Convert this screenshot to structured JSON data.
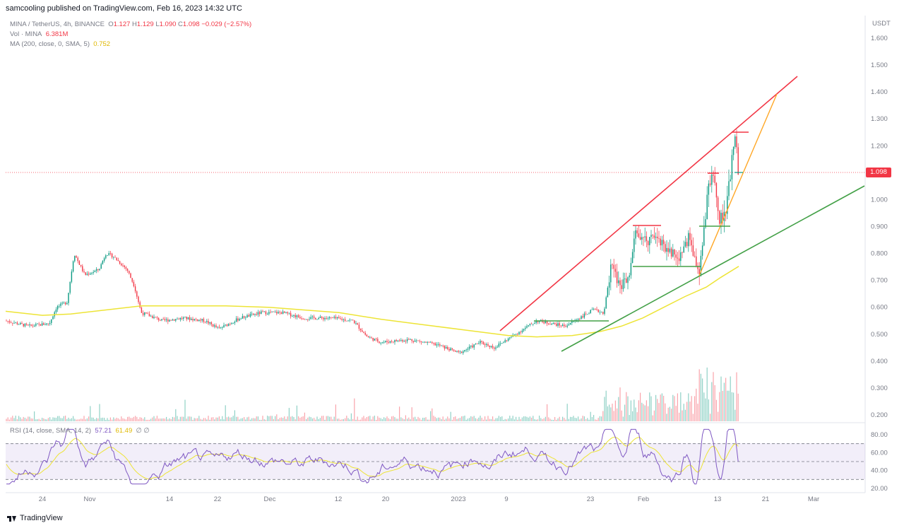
{
  "header": {
    "published": "samcooling published on TradingView.com, Feb 16, 2023 14:32 UTC"
  },
  "legend": {
    "symbol": "MINA / TetherUS, 4h, BINANCE",
    "o_label": "O",
    "o": "1.127",
    "h_label": "H",
    "h": "1.129",
    "l_label": "L",
    "l": "1.090",
    "c_label": "C",
    "c": "1.098",
    "change": "−0.029 (−2.57%)",
    "vol_label": "Vol · MINA",
    "vol": "6.381M",
    "ma_label": "MA (200, close, 0, SMA, 5)",
    "ma": "0.752",
    "rsi_label": "RSI (14, close, SMA, 14, 2)",
    "rsi": "57.21",
    "rsi_ma": "61.49",
    "rsi_extra": "∅ ∅"
  },
  "axis": {
    "unit": "USDT",
    "price_ticks": [
      "1.600",
      "1.500",
      "1.400",
      "1.300",
      "1.200",
      "1.000",
      "0.900",
      "0.800",
      "0.700",
      "0.600",
      "0.500",
      "0.400",
      "0.300",
      "0.200"
    ],
    "last_price": "1.098",
    "rsi_ticks": [
      "80.00",
      "60.00",
      "40.00",
      "20.00"
    ],
    "time_ticks": [
      "24",
      "Nov",
      "14",
      "22",
      "Dec",
      "12",
      "20",
      "2023",
      "9",
      "23",
      "Feb",
      "13",
      "21",
      "Mar"
    ]
  },
  "colors": {
    "up": "#089981",
    "down": "#f23645",
    "ma": "#ede436",
    "rsi": "#7e57c2",
    "resistance": "#f23645",
    "support": "#43a047",
    "fib": "#ffa726"
  },
  "brand": {
    "name": "TradingView"
  },
  "chart_data": {
    "type": "line",
    "title": "MINA / TetherUS, 4h, BINANCE",
    "ylim": [
      0.18,
      1.63
    ],
    "last_close": 1.098,
    "ma_last": 0.752,
    "x": [
      "24",
      "Nov",
      "14",
      "22",
      "Dec",
      "12",
      "20",
      "2023",
      "9",
      "23",
      "Feb",
      "13"
    ],
    "series": [
      {
        "name": "Close",
        "values": [
          0.55,
          0.74,
          0.57,
          0.56,
          0.57,
          0.55,
          0.48,
          0.44,
          0.52,
          0.62,
          0.88,
          1.1
        ]
      },
      {
        "name": "MA (200, close, 0, SMA, 5)",
        "values": [
          0.58,
          0.59,
          0.6,
          0.6,
          0.6,
          0.58,
          0.54,
          0.5,
          0.49,
          0.51,
          0.62,
          0.75
        ]
      }
    ]
  }
}
